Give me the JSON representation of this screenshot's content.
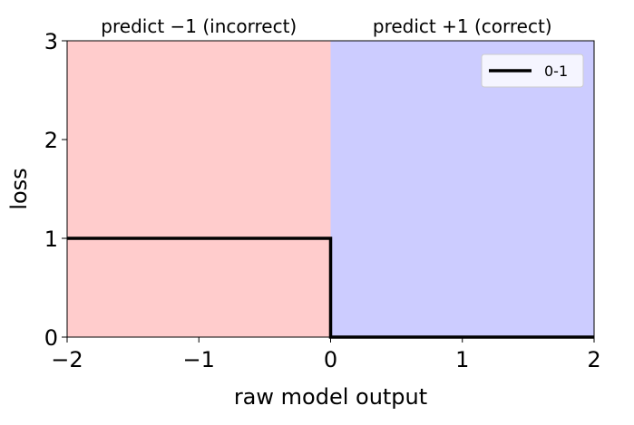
{
  "chart_data": {
    "type": "line",
    "xlabel": "raw model output",
    "ylabel": "loss",
    "xlim": [
      -2,
      2
    ],
    "ylim": [
      0,
      3
    ],
    "xticks": [
      -2,
      -1,
      0,
      1,
      2
    ],
    "xtick_labels": [
      "−2",
      "−1",
      "0",
      "1",
      "2"
    ],
    "yticks": [
      0,
      1,
      2,
      3
    ],
    "ytick_labels": [
      "0",
      "1",
      "2",
      "3"
    ],
    "grid": false,
    "legend_position": "top-right",
    "regions": [
      {
        "label": "predict −1 (incorrect)",
        "x_range": [
          -2,
          0
        ],
        "color": "#ffcccc"
      },
      {
        "label": "predict +1 (correct)",
        "x_range": [
          0,
          2
        ],
        "color": "#ccccff"
      }
    ],
    "series": [
      {
        "name": "0-1",
        "color": "#000000",
        "x": [
          -2,
          0,
          0,
          2
        ],
        "y": [
          1,
          1,
          0,
          0
        ]
      }
    ]
  }
}
